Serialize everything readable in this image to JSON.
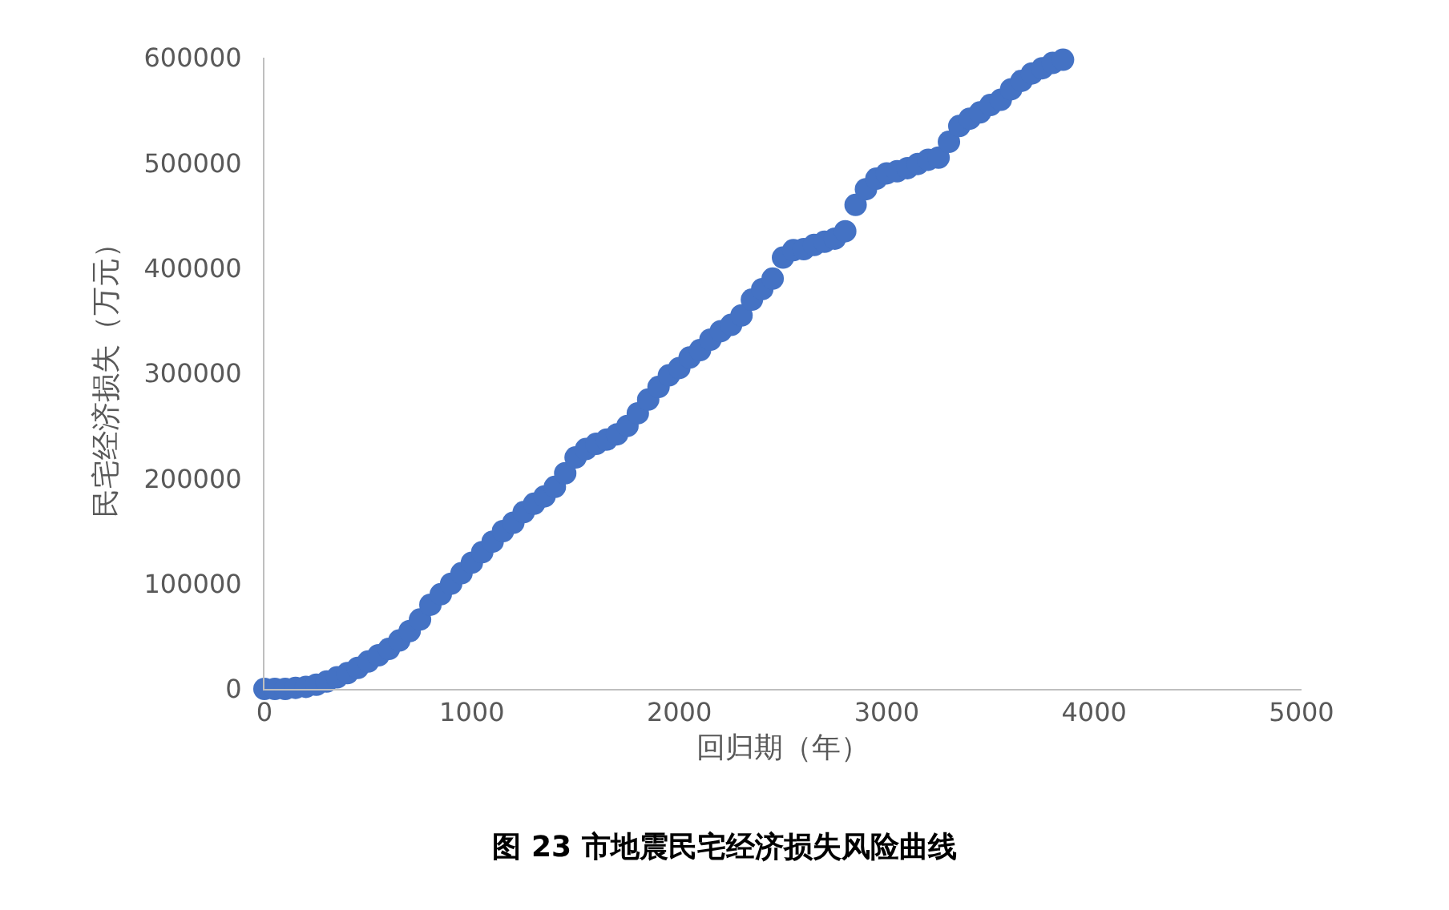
{
  "chart_data": {
    "type": "scatter",
    "title": "图 23 市地震民宅经济损失风险曲线",
    "xlabel": "回归期（年）",
    "ylabel": "民宅经济损失（万元）",
    "x": [
      0,
      50,
      100,
      150,
      200,
      250,
      300,
      350,
      400,
      450,
      500,
      550,
      600,
      650,
      700,
      750,
      800,
      850,
      900,
      950,
      1000,
      1050,
      1100,
      1150,
      1200,
      1250,
      1300,
      1350,
      1400,
      1450,
      1500,
      1550,
      1600,
      1650,
      1700,
      1750,
      1800,
      1850,
      1900,
      1950,
      2000,
      2050,
      2100,
      2150,
      2200,
      2250,
      2300,
      2350,
      2400,
      2450,
      2500,
      2550,
      2600,
      2650,
      2700,
      2750,
      2800,
      2850,
      2900,
      2950,
      3000,
      3050,
      3100,
      3150,
      3200,
      3250,
      3300,
      3350,
      3400,
      3450,
      3500,
      3550,
      3600,
      3650,
      3700,
      3750,
      3800,
      3850
    ],
    "series": [
      {
        "color": "#4472c4",
        "values": [
          0,
          0,
          0,
          1000,
          2000,
          4000,
          7000,
          11000,
          15000,
          20000,
          26000,
          32000,
          38000,
          46000,
          55000,
          66000,
          80000,
          90000,
          100000,
          110000,
          120000,
          130000,
          140000,
          150000,
          158000,
          168000,
          176000,
          183000,
          192000,
          205000,
          220000,
          228000,
          233000,
          237000,
          242000,
          250000,
          262000,
          275000,
          287000,
          298000,
          305000,
          315000,
          322000,
          332000,
          340000,
          346000,
          355000,
          370000,
          380000,
          390000,
          410000,
          417000,
          418000,
          422000,
          425000,
          428000,
          435000,
          460000,
          475000,
          485000,
          490000,
          492000,
          495000,
          499000,
          503000,
          505000,
          520000,
          535000,
          542000,
          548000,
          555000,
          560000,
          570000,
          578000,
          585000,
          590000,
          595000,
          598000
        ]
      }
    ],
    "xlim": [
      0,
      5000
    ],
    "xticks": [
      0,
      1000,
      2000,
      3000,
      4000,
      5000
    ],
    "ylim": [
      0,
      600000
    ],
    "yticks": [
      0,
      100000,
      200000,
      300000,
      400000,
      500000,
      600000
    ],
    "marker": "circle",
    "grid": false
  }
}
